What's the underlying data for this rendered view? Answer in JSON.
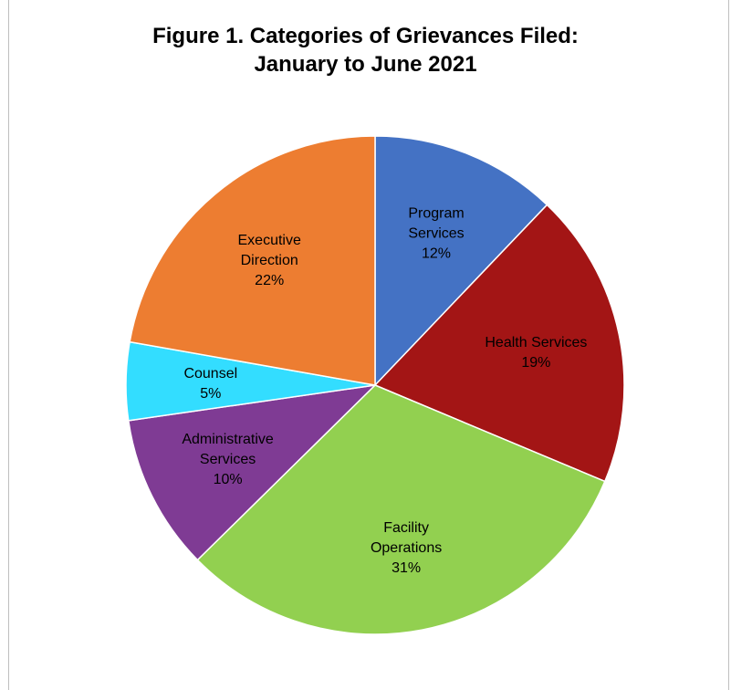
{
  "chart_data": {
    "type": "pie",
    "title_lines": [
      "Figure 1. Categories of Grievances Filed:",
      "January to June 2021"
    ],
    "slices": [
      {
        "label_lines": [
          "Program",
          "Services"
        ],
        "value": 12,
        "value_label": "12%",
        "color": "#4472C4"
      },
      {
        "label_lines": [
          "Health Services"
        ],
        "value": 19,
        "value_label": "19%",
        "color": "#A31515"
      },
      {
        "label_lines": [
          "Facility",
          "Operations"
        ],
        "value": 31,
        "value_label": "31%",
        "color": "#92D050"
      },
      {
        "label_lines": [
          "Administrative",
          "Services"
        ],
        "value": 10,
        "value_label": "10%",
        "color": "#7F3B94"
      },
      {
        "label_lines": [
          "Counsel"
        ],
        "value": 5,
        "value_label": "5%",
        "color": "#33DDFF"
      },
      {
        "label_lines": [
          "Executive",
          "Direction"
        ],
        "value": 22,
        "value_label": "22%",
        "color": "#ED7D31"
      }
    ],
    "start_angle": "12 o'clock",
    "direction": "clockwise",
    "legend": "none",
    "labels": "inside slices"
  }
}
